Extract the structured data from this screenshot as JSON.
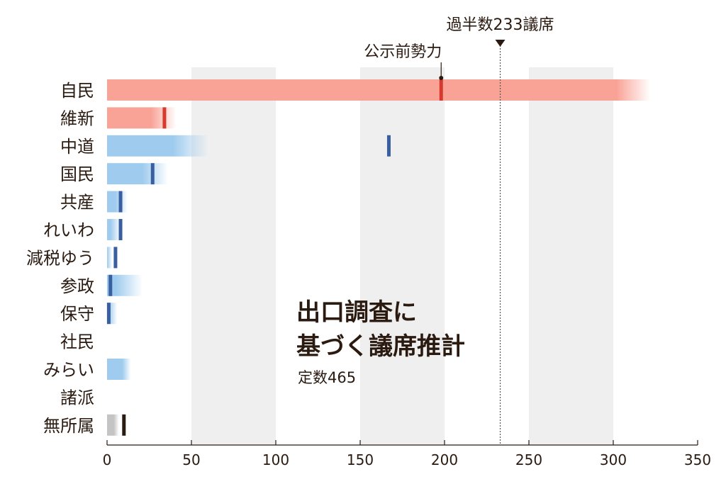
{
  "chart_data": {
    "type": "bar",
    "orientation": "horizontal",
    "title": "出口調査に基づく議席推計",
    "title_lines": [
      "出口調査に",
      "基づく議席推計"
    ],
    "subtitle": "定数465",
    "xlim": [
      0,
      350
    ],
    "xticks": [
      0,
      50,
      100,
      150,
      200,
      250,
      300,
      350
    ],
    "grid": "alternating shaded bands every 50",
    "majority": {
      "value": 233,
      "label": "過半数233議席"
    },
    "pre_election_label": "公示前勢力",
    "categories": [
      "自民",
      "維新",
      "中道",
      "国民",
      "共産",
      "れいわ",
      "減税ゆう",
      "参政",
      "保守",
      "社民",
      "みらい",
      "諸派",
      "無所属"
    ],
    "series": [
      {
        "key": "estimate_low",
        "values": [
          302,
          26,
          39,
          21,
          5,
          2,
          0,
          5,
          1,
          null,
          9,
          null,
          4
        ]
      },
      {
        "key": "estimate_high",
        "values": [
          322,
          41,
          60,
          36,
          12,
          8,
          3,
          21,
          6,
          null,
          14,
          null,
          7
        ]
      },
      {
        "key": "pre_election",
        "values": [
          198,
          34,
          167,
          27,
          8,
          8,
          5,
          2,
          1,
          null,
          null,
          null,
          10
        ]
      }
    ],
    "bar_colors": [
      "#f9a397",
      "#f9a397",
      "#9ecbee",
      "#9ecbee",
      "#9ecbee",
      "#9ecbee",
      "#9ecbee",
      "#9ecbee",
      "#9ecbee",
      "#9ecbee",
      "#9ecbee",
      "#9ecbee",
      "#c4c4c4"
    ],
    "marker_colors": [
      "#d63a2e",
      "#d63a2e",
      "#3a5fa0",
      "#3a5fa0",
      "#3a5fa0",
      "#3a5fa0",
      "#3a5fa0",
      "#3a5fa0",
      "#3a5fa0",
      "#3a5fa0",
      "#3a5fa0",
      "#3a5fa0",
      "#2a1a10"
    ],
    "band_color": "#efefef"
  }
}
